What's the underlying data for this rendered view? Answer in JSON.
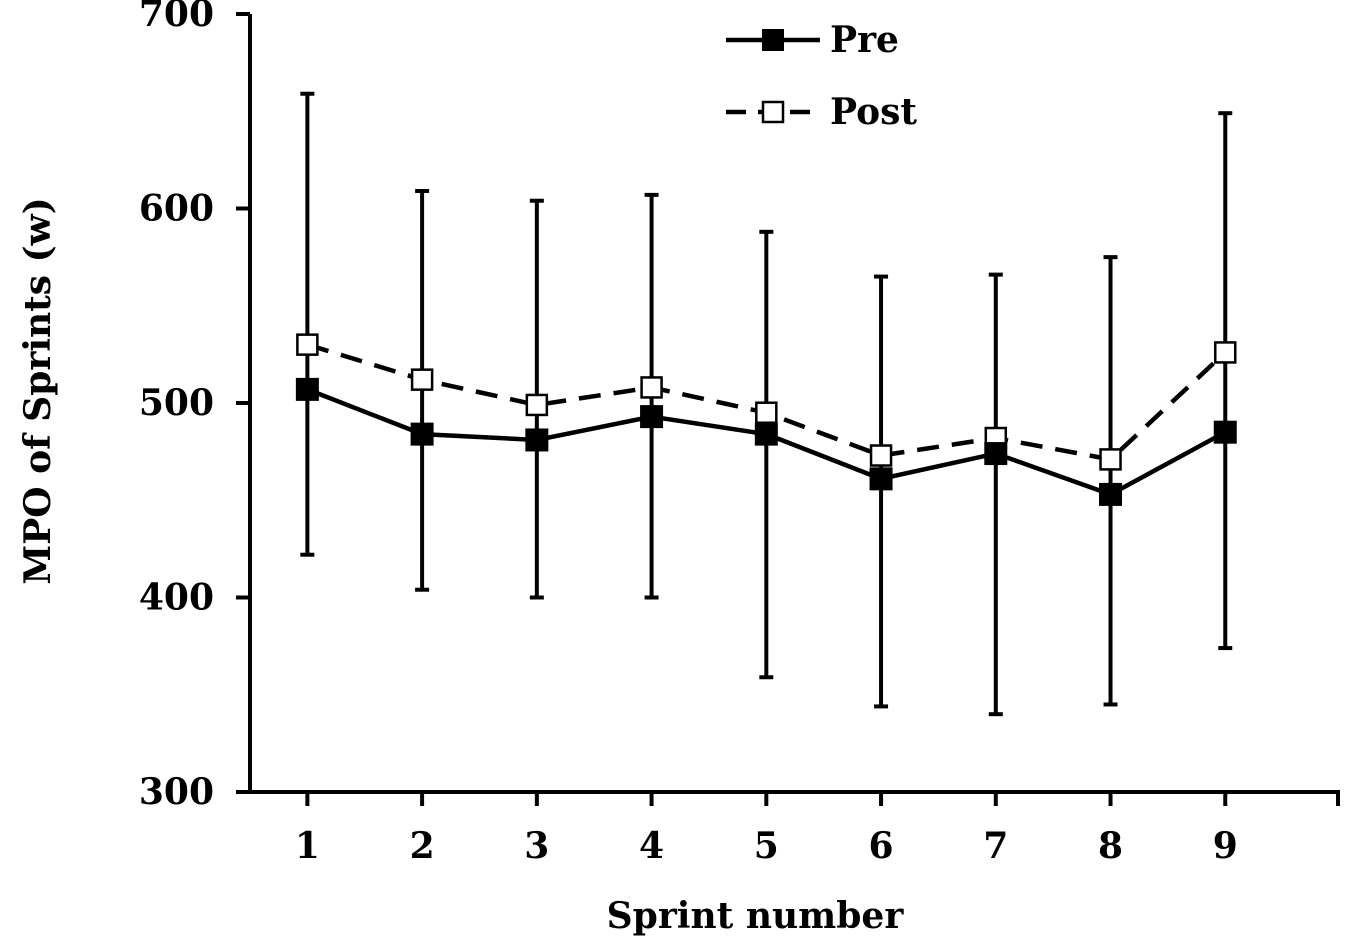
{
  "chart_data": {
    "type": "line",
    "title": "",
    "xlabel": "Sprint number",
    "ylabel": "MPO of Sprints (w)",
    "x": [
      1,
      2,
      3,
      4,
      5,
      6,
      7,
      8,
      9
    ],
    "xlim": [
      0.5,
      10
    ],
    "ylim": [
      300,
      700
    ],
    "yticks": [
      300,
      400,
      500,
      600,
      700
    ],
    "grid": false,
    "legend_position": "top-center",
    "series": [
      {
        "name": "Pre",
        "marker": "filled-square",
        "line_style": "solid",
        "color": "#000000",
        "values": [
          507,
          484,
          481,
          493,
          484,
          461,
          474,
          453,
          485
        ],
        "error_upper": [
          659,
          609,
          604,
          607,
          588,
          565,
          566,
          575,
          649
        ],
        "error_lower": [
          422,
          404,
          400,
          400,
          359,
          344,
          340,
          345,
          374
        ]
      },
      {
        "name": "Post",
        "marker": "open-square",
        "line_style": "dashed",
        "color": "#000000",
        "values": [
          530,
          512,
          499,
          508,
          495,
          473,
          482,
          471,
          526
        ]
      }
    ]
  }
}
